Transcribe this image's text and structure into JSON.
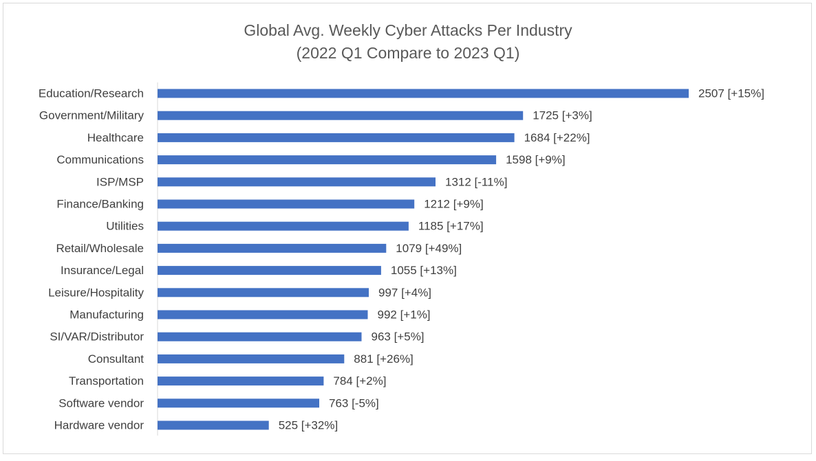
{
  "chart_data": {
    "type": "bar",
    "orientation": "horizontal",
    "title": "Global Avg. Weekly Cyber Attacks Per Industry",
    "subtitle": "(2022 Q1 Compare to 2023 Q1)",
    "categories": [
      "Education/Research",
      "Government/Military",
      "Healthcare",
      "Communications",
      "ISP/MSP",
      "Finance/Banking",
      "Utilities",
      "Retail/Wholesale",
      "Insurance/Legal",
      "Leisure/Hospitality",
      "Manufacturing",
      "SI/VAR/Distributor",
      "Consultant",
      "Transportation",
      "Software vendor",
      "Hardware vendor"
    ],
    "values": [
      2507,
      1725,
      1684,
      1598,
      1312,
      1212,
      1185,
      1079,
      1055,
      997,
      992,
      963,
      881,
      784,
      763,
      525
    ],
    "data_labels": [
      "2507 [+15%]",
      "1725 [+3%]",
      "1684 [+22%]",
      "1598 [+9%]",
      "1312 [-11%]",
      "1212 [+9%]",
      "1185 [+17%]",
      "1079 [+49%]",
      "1055 [+13%]",
      "997 [+4%]",
      "992 [+1%]",
      "963 [+5%]",
      "881 [+26%]",
      "784 [+2%]",
      "763 [-5%]",
      "525 [+32%]"
    ],
    "xlim": [
      0,
      2507
    ],
    "grid": false,
    "bar_color": "#4472c4",
    "text_color": "#404040",
    "title_color": "#595959",
    "axis_color": "#d9d9d9"
  }
}
